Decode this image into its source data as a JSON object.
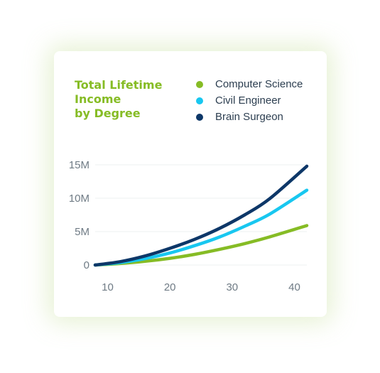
{
  "chart_data": {
    "type": "line",
    "title": [
      "Total Lifetime",
      "Income",
      "by Degree"
    ],
    "xlabel": "",
    "ylabel": "",
    "x": [
      8,
      12,
      16,
      20,
      24,
      28,
      32,
      36,
      42
    ],
    "xlim": [
      8,
      42
    ],
    "ylim": [
      0,
      15
    ],
    "x_ticks": [
      10,
      20,
      30,
      40
    ],
    "y_ticks": [
      0,
      5,
      10,
      15
    ],
    "y_tick_labels": [
      "0",
      "5M",
      "10M",
      "15M"
    ],
    "grid": true,
    "legend": "top-right",
    "series": [
      {
        "name": "Computer Science",
        "color": "#86bc25",
        "values": [
          0,
          0.22,
          0.55,
          1.0,
          1.6,
          2.35,
          3.2,
          4.2,
          5.9
        ]
      },
      {
        "name": "Civil Engineer",
        "color": "#18c7f0",
        "values": [
          0,
          0.35,
          0.95,
          1.8,
          2.9,
          4.2,
          5.8,
          7.6,
          11.2
        ]
      },
      {
        "name": "Brain Surgeon",
        "color": "#0d3768",
        "values": [
          0,
          0.5,
          1.35,
          2.5,
          3.85,
          5.5,
          7.5,
          9.9,
          14.8
        ]
      }
    ]
  }
}
